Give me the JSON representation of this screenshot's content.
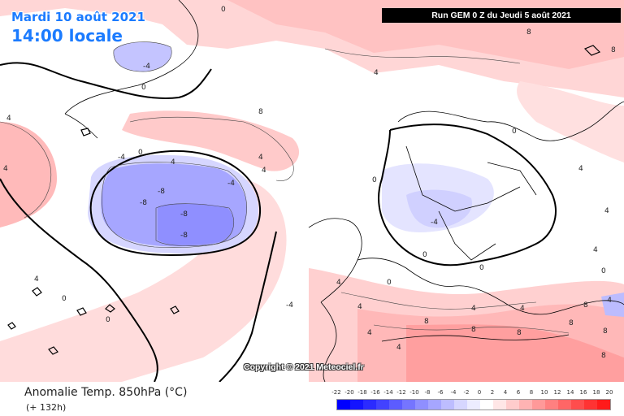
{
  "header": {
    "date": "Mardi 10 août 2021",
    "time": "14:00 locale",
    "run": "Run GEM 0 Z du Jeudi 5 août 2021",
    "text_color": "#1b7bff"
  },
  "copyright": "Copyright © 2021 Meteociel.fr",
  "footer": {
    "field": "Anomalie Temp. 850hPa (°C)",
    "lead": "(+ 132h)"
  },
  "legend": {
    "ticks": [
      "-22",
      "-20",
      "-18",
      "-16",
      "-14",
      "-12",
      "-10",
      "-8",
      "-6",
      "-4",
      "-2",
      "0",
      "2",
      "4",
      "6",
      "8",
      "10",
      "12",
      "14",
      "16",
      "18",
      "20"
    ],
    "colors": [
      "#0000ff",
      "#1414ff",
      "#2b2bff",
      "#4242ff",
      "#5c5cff",
      "#7575ff",
      "#8f8fff",
      "#a6a6ff",
      "#bdbdff",
      "#d6d6ff",
      "#ececff",
      "#ffffff",
      "#ffe6e6",
      "#ffcccc",
      "#ffb3b3",
      "#ff9999",
      "#ff8080",
      "#ff6666",
      "#ff4d4d",
      "#ff3333",
      "#ff1a1a"
    ]
  },
  "contour_labels": [
    {
      "text": "0"
    },
    {
      "text": "-4"
    },
    {
      "text": "0"
    },
    {
      "text": "4"
    },
    {
      "text": "-4"
    },
    {
      "text": "0"
    },
    {
      "text": "4"
    },
    {
      "text": "8"
    },
    {
      "text": "4"
    },
    {
      "text": "4"
    },
    {
      "text": "-4"
    },
    {
      "text": "-8"
    },
    {
      "text": "-8"
    },
    {
      "text": "-8"
    },
    {
      "text": "-8"
    },
    {
      "text": "-4"
    },
    {
      "text": "0"
    },
    {
      "text": "4"
    },
    {
      "text": "4"
    },
    {
      "text": "4"
    },
    {
      "text": "0"
    },
    {
      "text": "0"
    },
    {
      "text": "4"
    },
    {
      "text": "0"
    },
    {
      "text": "-4"
    },
    {
      "text": "0"
    },
    {
      "text": "4"
    },
    {
      "text": "8"
    },
    {
      "text": "4"
    },
    {
      "text": "4"
    },
    {
      "text": "8"
    },
    {
      "text": "8"
    },
    {
      "text": "4"
    },
    {
      "text": "4"
    },
    {
      "text": "0"
    },
    {
      "text": "4"
    },
    {
      "text": "8"
    },
    {
      "text": "8"
    },
    {
      "text": "0"
    },
    {
      "text": "4"
    },
    {
      "text": "8"
    },
    {
      "text": "8"
    },
    {
      "text": "8"
    },
    {
      "text": "4"
    },
    {
      "text": "8"
    },
    {
      "text": "-4"
    },
    {
      "text": "0"
    }
  ]
}
